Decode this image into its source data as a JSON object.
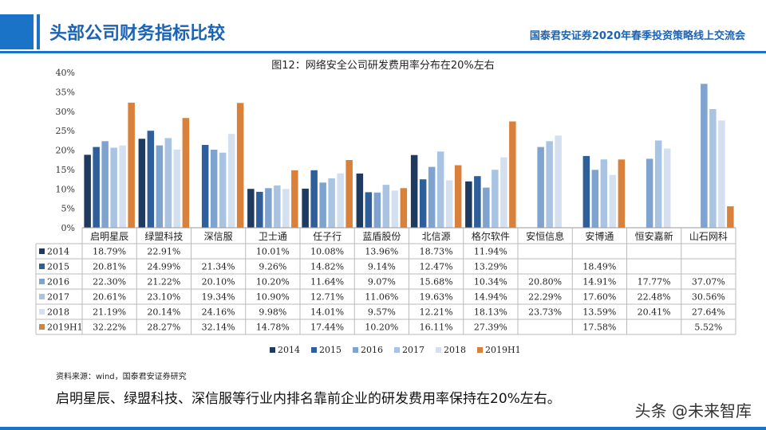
{
  "header": {
    "title": "头部公司财务指标比较",
    "event": "国泰君安证券2020年春季投资策略线上交流会"
  },
  "figure_title": "图12：网络安全公司研发费用率分布在20%左右",
  "source": "资料来源：wind，国泰君安证券研究",
  "conclusion": "启明星辰、绿盟科技、深信服等行业内排名靠前企业的研发费用率保持在20%左右。",
  "watermark": "头条 @未来智库",
  "colors": {
    "accent": "#1b73c8",
    "series": [
      "#1f3a5f",
      "#2e5f9a",
      "#7fa3cf",
      "#a9c3e3",
      "#d4e0ef",
      "#d9803a"
    ]
  },
  "chart_data": {
    "type": "bar",
    "categories": [
      "启明星辰",
      "绿盟科技",
      "深信服",
      "卫士通",
      "任子行",
      "蓝盾股份",
      "北信源",
      "格尔软件",
      "安恒信息",
      "安博通",
      "恒安嘉新",
      "山石网科"
    ],
    "series": [
      {
        "name": "2014",
        "values": [
          "18.79%",
          "22.91%",
          "",
          "10.01%",
          "10.08%",
          "13.96%",
          "18.73%",
          "11.94%",
          "",
          "",
          "",
          ""
        ]
      },
      {
        "name": "2015",
        "values": [
          "20.81%",
          "24.99%",
          "21.34%",
          "9.26%",
          "14.82%",
          "9.14%",
          "12.47%",
          "13.29%",
          "",
          "18.49%",
          "",
          ""
        ]
      },
      {
        "name": "2016",
        "values": [
          "22.30%",
          "21.22%",
          "20.10%",
          "10.20%",
          "11.64%",
          "9.07%",
          "15.68%",
          "10.34%",
          "20.80%",
          "14.91%",
          "17.77%",
          "37.07%"
        ]
      },
      {
        "name": "2017",
        "values": [
          "20.61%",
          "23.10%",
          "19.34%",
          "10.90%",
          "12.71%",
          "11.06%",
          "19.63%",
          "14.94%",
          "22.29%",
          "17.60%",
          "22.48%",
          "30.56%"
        ]
      },
      {
        "name": "2018",
        "values": [
          "21.19%",
          "20.14%",
          "24.16%",
          "9.98%",
          "14.01%",
          "9.57%",
          "12.21%",
          "18.13%",
          "23.73%",
          "13.59%",
          "20.41%",
          "27.64%"
        ]
      },
      {
        "name": "2019H1",
        "values": [
          "32.22%",
          "28.27%",
          "32.14%",
          "14.78%",
          "17.44%",
          "10.20%",
          "16.11%",
          "27.39%",
          "",
          "17.58%",
          "",
          "5.52%"
        ]
      }
    ],
    "yticks": [
      "0%",
      "5%",
      "10%",
      "15%",
      "20%",
      "25%",
      "30%",
      "35%",
      "40%"
    ],
    "ylim": [
      0,
      40
    ],
    "legend_position": "bottom",
    "grid": false
  }
}
